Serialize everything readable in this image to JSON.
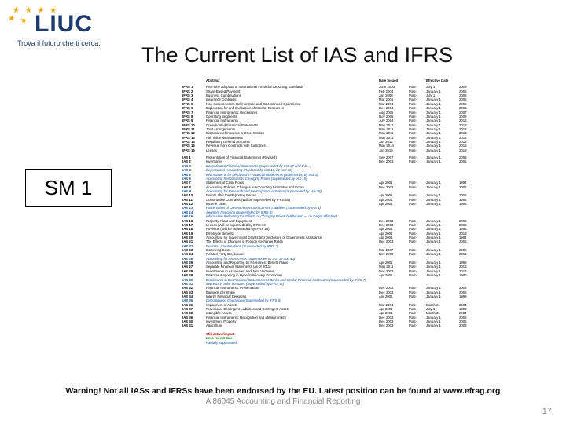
{
  "logo": {
    "brand": "LIUC",
    "tagline": "Trova il futuro che ti cerca.",
    "brand_color": "#1c3b6e",
    "star_color": "#f7a600"
  },
  "title": "The Current List of IAS and IFRS",
  "sm1_label": "SM 1",
  "columns": {
    "abstract": "Abstract",
    "date_issued": "Date Issued",
    "effective": "Effective Date"
  },
  "eff_prefix": "Post-",
  "rows": [
    {
      "code": "IFRS 1",
      "name": "First-time adoption of International Financial Reporting Standards",
      "issued": "June 2003",
      "eff": "July 1",
      "yr": "2009",
      "cls": ""
    },
    {
      "code": "IFRS 2",
      "name": "Share-Based Payment",
      "issued": "Feb 2004",
      "eff": "January 1",
      "yr": "2005",
      "cls": ""
    },
    {
      "code": "IFRS 3",
      "name": "Business Combinations",
      "issued": "Jan 2008",
      "eff": "July 1",
      "yr": "2009",
      "cls": ""
    },
    {
      "code": "IFRS 4",
      "name": "Insurance Contracts",
      "issued": "Mar 2004",
      "eff": "January 1",
      "yr": "2005",
      "cls": ""
    },
    {
      "code": "IFRS 5",
      "name": "Non-current Assets Held for Sale and Discontinued Operations",
      "issued": "Mar 2004",
      "eff": "January 1",
      "yr": "2005",
      "cls": ""
    },
    {
      "code": "IFRS 6",
      "name": "Exploration for and Evaluation of Mineral Resources",
      "issued": "Dec 2004",
      "eff": "January 1",
      "yr": "2006",
      "cls": ""
    },
    {
      "code": "IFRS 7",
      "name": "Financial Instruments: Disclosures",
      "issued": "Aug 2005",
      "eff": "January 1",
      "yr": "2007",
      "cls": ""
    },
    {
      "code": "IFRS 8",
      "name": "Operating Segments",
      "issued": "Nov 2006",
      "eff": "January 1",
      "yr": "2009",
      "cls": ""
    },
    {
      "code": "IFRS 9",
      "name": "Financial Instruments",
      "issued": "July 2014",
      "eff": "January 1",
      "yr": "2018",
      "cls": ""
    },
    {
      "code": "IFRS 10",
      "name": "Consolidated Financial Statements",
      "issued": "May 2011",
      "eff": "January 1",
      "yr": "2013",
      "cls": ""
    },
    {
      "code": "IFRS 11",
      "name": "Joint Arrangements",
      "issued": "May 2011",
      "eff": "January 1",
      "yr": "2013",
      "cls": ""
    },
    {
      "code": "IFRS 12",
      "name": "Disclosure of Interests in Other Entities",
      "issued": "May 2011",
      "eff": "January 1",
      "yr": "2013",
      "cls": ""
    },
    {
      "code": "IFRS 13",
      "name": "Fair Value Measurement",
      "issued": "May 2011",
      "eff": "January 1",
      "yr": "2013",
      "cls": ""
    },
    {
      "code": "IFRS 14",
      "name": "Regulatory Deferral Accounts",
      "issued": "Jan 2014",
      "eff": "January 1",
      "yr": "2016",
      "cls": ""
    },
    {
      "code": "IFRS 15",
      "name": "Revenue from Contracts with Customers",
      "issued": "May 2014",
      "eff": "January 1",
      "yr": "2018",
      "cls": ""
    },
    {
      "code": "IFRS 16",
      "name": "Leases",
      "issued": "Jan 2016",
      "eff": "January 1",
      "yr": "2019",
      "cls": ""
    },
    {
      "code": "",
      "name": "",
      "issued": "",
      "eff": "",
      "yr": "",
      "cls": "spacer"
    },
    {
      "code": "IAS 1",
      "name": "Presentation of Financial Statements (Revised)",
      "issued": "Sep 2007",
      "eff": "January 1",
      "yr": "2009",
      "cls": ""
    },
    {
      "code": "IAS 2",
      "name": "Inventories",
      "issued": "Dec 2003",
      "eff": "January 1",
      "yr": "2005",
      "cls": ""
    },
    {
      "code": "IAS 3",
      "name": "Consolidated Financial Statements (Superseded by IAS 27 and IAS…)",
      "issued": "",
      "eff": "",
      "yr": "",
      "cls": "blue italic"
    },
    {
      "code": "IAS 4",
      "name": "Depreciation Accounting (Replaced by IAS 16, 22 and 38)",
      "issued": "",
      "eff": "",
      "yr": "",
      "cls": "blue italic"
    },
    {
      "code": "IAS 5",
      "name": "Information to be Disclosed in Financial Statements (Superseded by IAS 1)",
      "issued": "",
      "eff": "",
      "yr": "",
      "cls": "blue italic"
    },
    {
      "code": "IAS 6",
      "name": "Accounting Responses to Changing Prices (Superseded by IAS 15)",
      "issued": "",
      "eff": "",
      "yr": "",
      "cls": "blue italic"
    },
    {
      "code": "IAS 7",
      "name": "Statement of Cash Flows",
      "issued": "Apr 2001",
      "eff": "January 1",
      "yr": "1994",
      "cls": ""
    },
    {
      "code": "IAS 8",
      "name": "Accounting Policies, Changes in Accounting Estimates and Errors",
      "issued": "Dec 2003",
      "eff": "January 1",
      "yr": "2005",
      "cls": ""
    },
    {
      "code": "IAS 9",
      "name": "Accounting for Research and Development Activities (Superseded by IAS 38)",
      "issued": "",
      "eff": "",
      "yr": "",
      "cls": "blue italic"
    },
    {
      "code": "IAS 10",
      "name": "Events after the Reporting Period",
      "issued": "Apr 2001",
      "eff": "January 1",
      "yr": "2005",
      "cls": ""
    },
    {
      "code": "IAS 11",
      "name": "Construction Contracts (Will be superseded by IFRS 15)",
      "issued": "Apr 2001",
      "eff": "January 1",
      "yr": "1995",
      "cls": ""
    },
    {
      "code": "IAS 12",
      "name": "Income Taxes",
      "issued": "Apr 2001",
      "eff": "January 1",
      "yr": "1998",
      "cls": ""
    },
    {
      "code": "IAS 13",
      "name": "Presentation of Current Assets and Current Liabilities (Superseded by IAS 1)",
      "issued": "",
      "eff": "",
      "yr": "",
      "cls": "blue italic"
    },
    {
      "code": "IAS 14",
      "name": "Segment Reporting (Superseded by IFRS 8)",
      "issued": "",
      "eff": "",
      "yr": "",
      "cls": "blue italic"
    },
    {
      "code": "IAS 15",
      "name": "Information Reflecting the Effects of Changing Prices (Withdrawn — no longer effective)",
      "issued": "",
      "eff": "",
      "yr": "",
      "cls": "blue italic"
    },
    {
      "code": "IAS 16",
      "name": "Property, Plant and Equipment",
      "issued": "Dec 2003",
      "eff": "January 1",
      "yr": "2005",
      "cls": ""
    },
    {
      "code": "IAS 17",
      "name": "Leases (Will be superseded by IFRS 16)",
      "issued": "Dec 2003",
      "eff": "January 1",
      "yr": "2005",
      "cls": ""
    },
    {
      "code": "IAS 18",
      "name": "Revenue (Will be superseded by IFRS 15)",
      "issued": "Apr 2001",
      "eff": "January 1",
      "yr": "1995",
      "cls": ""
    },
    {
      "code": "IAS 19",
      "name": "Employee Benefits",
      "issued": "Apr 2001",
      "eff": "January 1",
      "yr": "2013",
      "cls": ""
    },
    {
      "code": "IAS 20",
      "name": "Accounting for Government Grants and Disclosure of Government Assistance",
      "issued": "Apr 2001",
      "eff": "January 1",
      "yr": "1984",
      "cls": ""
    },
    {
      "code": "IAS 21",
      "name": "The Effects of Changes in Foreign Exchange Rates",
      "issued": "Dec 2003",
      "eff": "January 1",
      "yr": "2005",
      "cls": ""
    },
    {
      "code": "IAS 22",
      "name": "Business Combinations (Superseded by IFRS 3)",
      "issued": "",
      "eff": "",
      "yr": "",
      "cls": "blue italic"
    },
    {
      "code": "IAS 23",
      "name": "Borrowing Costs",
      "issued": "Mar 2007",
      "eff": "January 1",
      "yr": "2009",
      "cls": ""
    },
    {
      "code": "IAS 24",
      "name": "Related Party Disclosures",
      "issued": "Nov 2009",
      "eff": "January 1",
      "yr": "2011",
      "cls": ""
    },
    {
      "code": "IAS 25",
      "name": "Accounting for Investments (Superseded by IAS 39 and 40)",
      "issued": "",
      "eff": "",
      "yr": "",
      "cls": "blue italic"
    },
    {
      "code": "IAS 26",
      "name": "Accounting and Reporting by Retirement Benefit Plans",
      "issued": "Apr 2001",
      "eff": "January 1",
      "yr": "1998",
      "cls": ""
    },
    {
      "code": "IAS 27",
      "name": "Separate Financial Statements (as of 2011)",
      "issued": "May 2011",
      "eff": "January 1",
      "yr": "2013",
      "cls": ""
    },
    {
      "code": "IAS 28",
      "name": "Investments in Associates and Joint Ventures",
      "issued": "Dec 2003",
      "eff": "January 1",
      "yr": "2013",
      "cls": ""
    },
    {
      "code": "IAS 29",
      "name": "Financial Reporting in Hyperinflationary Economies",
      "issued": "Apr 2001",
      "eff": "January 1",
      "yr": "1990",
      "cls": ""
    },
    {
      "code": "IAS 30",
      "name": "Disclosures in the Financial Statements of Banks and Similar Financial Institutions (Superseded by IFRS 7)",
      "issued": "",
      "eff": "",
      "yr": "",
      "cls": "blue italic"
    },
    {
      "code": "IAS 31",
      "name": "Interests in Joint Ventures (Superseded by IFRS 11)",
      "issued": "",
      "eff": "",
      "yr": "",
      "cls": "blue italic"
    },
    {
      "code": "IAS 32",
      "name": "Financial Instruments: Presentation",
      "issued": "Dec 2003",
      "eff": "January 1",
      "yr": "2005",
      "cls": ""
    },
    {
      "code": "IAS 33",
      "name": "Earnings per Share",
      "issued": "Dec 2003",
      "eff": "January 1",
      "yr": "2005",
      "cls": ""
    },
    {
      "code": "IAS 34",
      "name": "Interim Financial Reporting",
      "issued": "Apr 2001",
      "eff": "January 1",
      "yr": "1999",
      "cls": ""
    },
    {
      "code": "IAS 35",
      "name": "Discontinuing Operations (Superseded by IFRS 5)",
      "issued": "",
      "eff": "",
      "yr": "",
      "cls": "blue italic"
    },
    {
      "code": "IAS 36",
      "name": "Impairment of Assets",
      "issued": "Mar 2004",
      "eff": "March 31",
      "yr": "2004",
      "cls": ""
    },
    {
      "code": "IAS 37",
      "name": "Provisions, Contingent Liabilities and Contingent Assets",
      "issued": "Apr 2001",
      "eff": "July 1",
      "yr": "1999",
      "cls": ""
    },
    {
      "code": "IAS 38",
      "name": "Intangible Assets",
      "issued": "Apr 2001",
      "eff": "March 31",
      "yr": "2004",
      "cls": ""
    },
    {
      "code": "IAS 39",
      "name": "Financial Instruments: Recognition and Measurement",
      "issued": "Dec 2003",
      "eff": "January 1",
      "yr": "2005",
      "cls": ""
    },
    {
      "code": "IAS 40",
      "name": "Investment Property",
      "issued": "Dec 2003",
      "eff": "January 1",
      "yr": "2005",
      "cls": ""
    },
    {
      "code": "IAS 41",
      "name": "Agriculture",
      "issued": "Dec 2003",
      "eff": "January 1",
      "yr": "2003",
      "cls": ""
    }
  ],
  "legend": [
    {
      "text": "Still active/impact",
      "cls": "red"
    },
    {
      "text": "Less recent date",
      "cls": "green"
    },
    {
      "text": "Partially superseded",
      "cls": "blue italic"
    }
  ],
  "footer": {
    "warning": "Warning! Not all IASs and IFRSs have been endorsed by the EU. Latest position can be found at www.efrag.org",
    "course": "A 86045 Accounting and Financial Reporting",
    "page": "17"
  },
  "colors": {
    "blue": "#0a4ea0",
    "red": "#c00000",
    "green": "#0a8a0a",
    "text": "#000000",
    "muted": "#888888"
  }
}
